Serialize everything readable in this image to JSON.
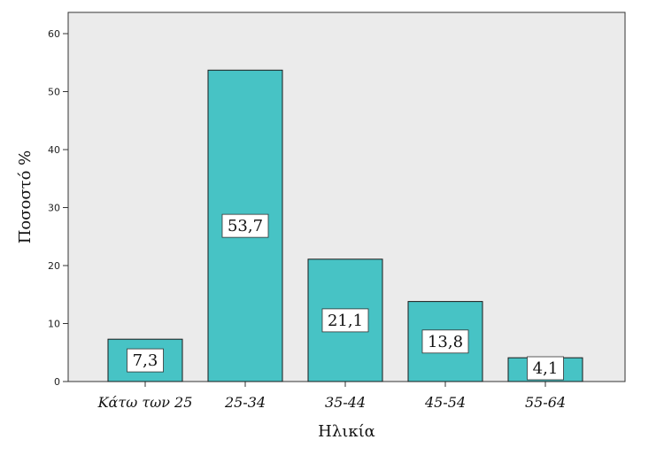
{
  "chart_data": {
    "type": "bar",
    "categories": [
      "Κάτω των 25",
      "25-34",
      "35-44",
      "45-54",
      "55-64"
    ],
    "values": [
      7.3,
      53.7,
      21.1,
      13.8,
      4.1
    ],
    "data_labels": [
      "7,3",
      "53,7",
      "21,1",
      "13,8",
      "4,1"
    ],
    "title": "",
    "xlabel": "Ηλικία",
    "ylabel": "Ποσοστό %",
    "ylim": [
      0,
      60
    ],
    "yticks": [
      0,
      10,
      20,
      30,
      40,
      50,
      60
    ],
    "grid": false,
    "colors": {
      "plot_background": "#ebebeb",
      "bar_fill": "#47c3c5",
      "bar_stroke": "#1a1a1a",
      "label_box": "#ffffff"
    }
  }
}
